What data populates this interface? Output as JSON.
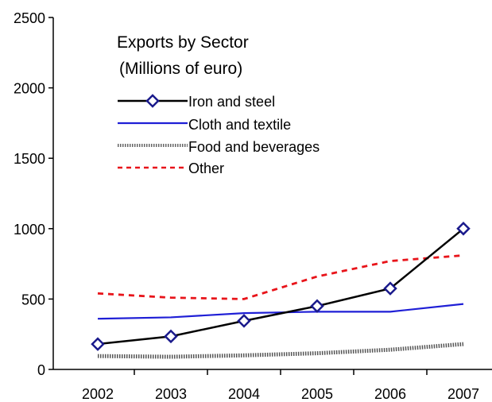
{
  "chart_data": {
    "type": "line",
    "title_line1": "Exports by Sector",
    "title_line2": "(Millions of euro)",
    "categories": [
      "2002",
      "2003",
      "2004",
      "2005",
      "2006",
      "2007"
    ],
    "ylim": [
      0,
      2500
    ],
    "yticks": [
      "0",
      "500",
      "1000",
      "1500",
      "2000",
      "2500"
    ],
    "legend_position": "top-left (inside plot)",
    "grid": false,
    "series": [
      {
        "name": "Iron and steel",
        "values": [
          180,
          235,
          345,
          450,
          575,
          1000
        ],
        "color": "#000000",
        "style": "solid-diamond"
      },
      {
        "name": "Cloth and textile",
        "values": [
          360,
          370,
          400,
          410,
          410,
          465
        ],
        "color": "#1f1fd6",
        "style": "solid"
      },
      {
        "name": "Food and beverages",
        "values": [
          95,
          90,
          100,
          115,
          140,
          180
        ],
        "color": "#555555",
        "style": "hatched"
      },
      {
        "name": "Other",
        "values": [
          540,
          510,
          500,
          660,
          770,
          810
        ],
        "color": "#e8141a",
        "style": "dashed"
      }
    ]
  }
}
